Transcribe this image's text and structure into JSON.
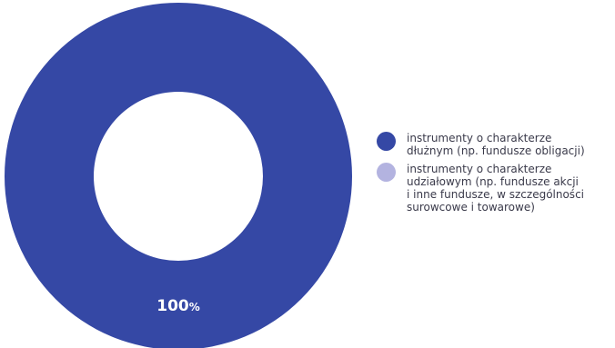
{
  "chart_data": {
    "type": "pie",
    "subtype": "donut",
    "title": "",
    "series": [
      {
        "name": "instrumenty o charakterze\ndłużnym (np. fundusze obligacji)",
        "value": 100,
        "label_number": "100",
        "label_unit": "%",
        "color": "#3548a5"
      },
      {
        "name": "instrumenty o charakterze\nudziałowym (np. fundusze akcji\ni inne fundusze, w szczególności\nsurowcowe i towarowe)",
        "value": 0,
        "label_number": "",
        "label_unit": "",
        "color": "#b3b3e0"
      }
    ],
    "legend_position": "right"
  }
}
